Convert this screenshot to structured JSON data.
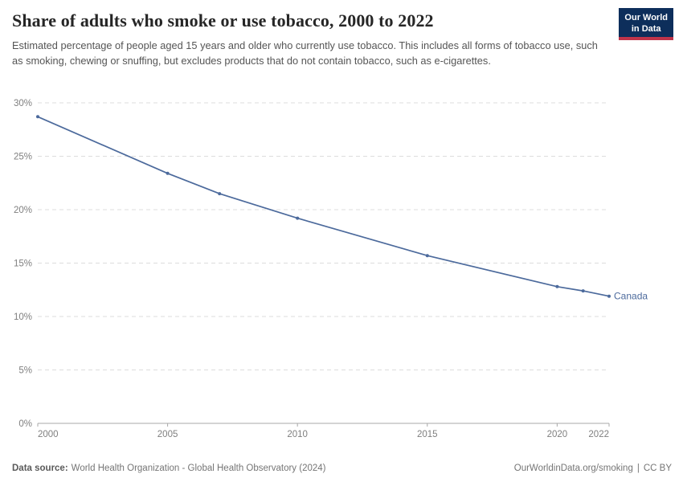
{
  "chart_data": {
    "type": "line",
    "title": "Share of adults who smoke or use tobacco, 2000 to 2022",
    "subtitle": "Estimated percentage of people aged 15 years and older who currently use tobacco. This includes all forms of tobacco use, such as smoking, chewing or snuffing, but excludes products that do not contain tobacco, such as e-cigarettes.",
    "series": [
      {
        "name": "Canada",
        "color": "#4c6a9c",
        "x": [
          2000,
          2005,
          2007,
          2010,
          2015,
          2020,
          2021,
          2022
        ],
        "values": [
          28.7,
          23.4,
          21.5,
          19.2,
          15.7,
          12.8,
          12.4,
          11.9
        ]
      }
    ],
    "entity_label": "Canada",
    "xlim": [
      2000,
      2022
    ],
    "ylim": [
      0,
      30
    ],
    "yticks": [
      0,
      5,
      10,
      15,
      20,
      25,
      30
    ],
    "ytick_suffix": "%",
    "xticks": [
      2000,
      2005,
      2010,
      2015,
      2020,
      2022
    ],
    "grid": "horizontal-dashed",
    "legend_position": "line-end-label",
    "axis_color": "#a8a8a8",
    "gridline_color": "#dcdcdc",
    "tick_label_color": "#7f7f7f"
  },
  "logo": {
    "line1": "Our World",
    "line2": "in Data",
    "bg_color": "#0d2e5b",
    "stripe_color": "#c0344a"
  },
  "footer": {
    "datasource_label": "Data source:",
    "datasource_text": "World Health Organization - Global Health Observatory (2024)",
    "url": "OurWorldinData.org/smoking",
    "separator": "|",
    "license": "CC BY"
  }
}
